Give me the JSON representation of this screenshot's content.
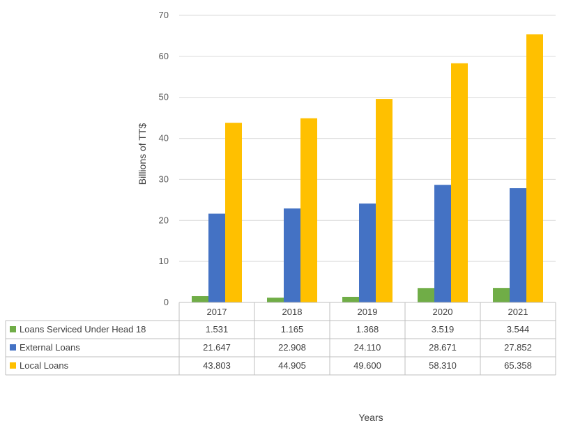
{
  "chart_data": {
    "type": "bar",
    "categories": [
      "2017",
      "2018",
      "2019",
      "2020",
      "2021"
    ],
    "series": [
      {
        "name": "Loans Serviced Under Head 18",
        "color": "#70AD47",
        "values": [
          1.531,
          1.165,
          1.368,
          3.519,
          3.544
        ],
        "labels": [
          "1.531",
          "1.165",
          "1.368",
          "3.519",
          "3.544"
        ]
      },
      {
        "name": "External Loans",
        "color": "#4472C4",
        "values": [
          21.647,
          22.908,
          24.11,
          28.671,
          27.852
        ],
        "labels": [
          "21.647",
          "22.908",
          "24.110",
          "28.671",
          "27.852"
        ]
      },
      {
        "name": "Local Loans",
        "color": "#FFC000",
        "values": [
          43.803,
          44.905,
          49.6,
          58.31,
          65.358
        ],
        "labels": [
          "43.803",
          "44.905",
          "49.600",
          "58.310",
          "65.358"
        ]
      }
    ],
    "xlabel": "Years",
    "ylabel": "Billions of TT$",
    "ylim": [
      0,
      70
    ],
    "yticks": [
      0,
      10,
      20,
      30,
      40,
      50,
      60,
      70
    ],
    "grid": true,
    "legend": "data-table"
  }
}
